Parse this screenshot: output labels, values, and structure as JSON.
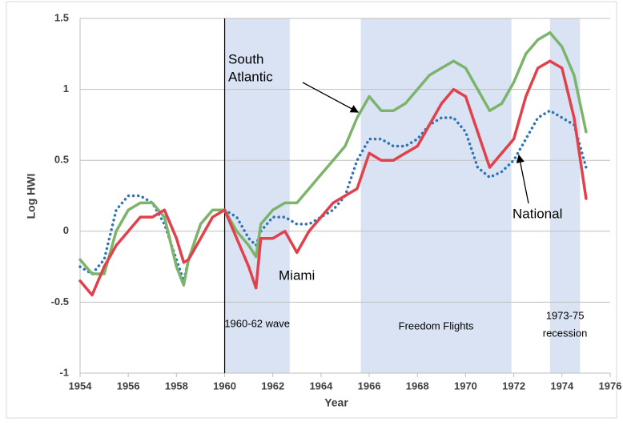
{
  "chart_data": {
    "type": "line",
    "xlabel": "Year",
    "ylabel": "Log HWI",
    "xlim": [
      1954,
      1976
    ],
    "xticks": [
      1954,
      1956,
      1958,
      1960,
      1962,
      1964,
      1966,
      1968,
      1970,
      1972,
      1974,
      1976
    ],
    "ylim": [
      -1,
      1.5
    ],
    "yticks": [
      -1,
      -0.5,
      0,
      0.5,
      1,
      1.5
    ],
    "grid": true,
    "x": [
      1954,
      1954.5,
      1955,
      1955.5,
      1956,
      1956.5,
      1957,
      1957.5,
      1958,
      1958.3,
      1958.5,
      1959,
      1959.5,
      1960,
      1960.5,
      1961,
      1961.3,
      1961.5,
      1962,
      1962.5,
      1963,
      1963.5,
      1964,
      1964.5,
      1965,
      1965.5,
      1966,
      1966.5,
      1967,
      1967.5,
      1968,
      1968.5,
      1969,
      1969.5,
      1970,
      1970.5,
      1971,
      1971.5,
      1972,
      1972.5,
      1973,
      1973.5,
      1974,
      1974.5,
      1975
    ],
    "series": [
      {
        "name": "National",
        "color": "#2e75b6",
        "style": "dotted",
        "values": [
          -0.25,
          -0.3,
          -0.2,
          0.15,
          0.25,
          0.25,
          0.2,
          0.05,
          -0.2,
          -0.35,
          -0.2,
          0.05,
          0.15,
          0.15,
          0.1,
          -0.05,
          -0.1,
          0.0,
          0.1,
          0.1,
          0.05,
          0.05,
          0.1,
          0.15,
          0.25,
          0.5,
          0.65,
          0.65,
          0.6,
          0.6,
          0.65,
          0.75,
          0.8,
          0.8,
          0.7,
          0.45,
          0.38,
          0.42,
          0.5,
          0.65,
          0.8,
          0.85,
          0.8,
          0.75,
          0.45
        ]
      },
      {
        "name": "South Atlantic",
        "color": "#7cb46c",
        "style": "solid",
        "values": [
          -0.2,
          -0.3,
          -0.3,
          0.0,
          0.15,
          0.2,
          0.2,
          0.1,
          -0.25,
          -0.38,
          -0.2,
          0.05,
          0.15,
          0.15,
          0.0,
          -0.1,
          -0.18,
          0.05,
          0.15,
          0.2,
          0.2,
          0.3,
          0.4,
          0.5,
          0.6,
          0.8,
          0.95,
          0.85,
          0.85,
          0.9,
          1.0,
          1.1,
          1.15,
          1.2,
          1.15,
          1.0,
          0.85,
          0.9,
          1.05,
          1.25,
          1.35,
          1.4,
          1.3,
          1.1,
          0.7
        ]
      },
      {
        "name": "Miami",
        "color": "#e2414b",
        "style": "solid",
        "values": [
          -0.35,
          -0.45,
          -0.25,
          -0.1,
          0.0,
          0.1,
          0.1,
          0.15,
          -0.05,
          -0.22,
          -0.2,
          -0.05,
          0.1,
          0.15,
          -0.05,
          -0.25,
          -0.4,
          -0.05,
          -0.05,
          0.0,
          -0.15,
          0.0,
          0.1,
          0.2,
          0.25,
          0.3,
          0.55,
          0.5,
          0.5,
          0.55,
          0.6,
          0.75,
          0.9,
          1.0,
          0.95,
          0.7,
          0.45,
          0.55,
          0.65,
          0.95,
          1.15,
          1.2,
          1.15,
          0.8,
          0.23
        ]
      }
    ],
    "shaded_regions": [
      {
        "start": 1960,
        "end": 1962.7,
        "label_lines": [
          "1960-62 wave"
        ]
      },
      {
        "start": 1965.65,
        "end": 1971.9,
        "label_lines": [
          "Freedom Flights"
        ]
      },
      {
        "start": 1973.5,
        "end": 1974.75,
        "label_lines": [
          "1973-75",
          "recession"
        ]
      }
    ],
    "shade_color": "#dae3f3",
    "vlines": [
      1960
    ],
    "annotations": [
      {
        "lines": [
          "South",
          "Atlantic"
        ]
      },
      {
        "lines": [
          "Miami"
        ]
      },
      {
        "lines": [
          "National"
        ]
      }
    ]
  }
}
